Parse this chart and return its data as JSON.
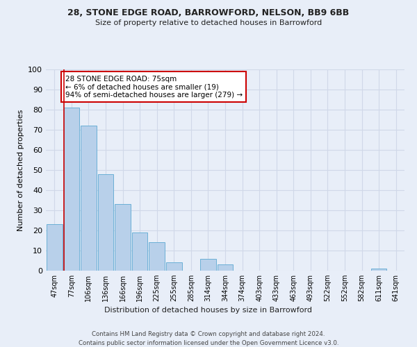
{
  "title1": "28, STONE EDGE ROAD, BARROWFORD, NELSON, BB9 6BB",
  "title2": "Size of property relative to detached houses in Barrowford",
  "xlabel": "Distribution of detached houses by size in Barrowford",
  "ylabel": "Number of detached properties",
  "categories": [
    "47sqm",
    "77sqm",
    "106sqm",
    "136sqm",
    "166sqm",
    "196sqm",
    "225sqm",
    "255sqm",
    "285sqm",
    "314sqm",
    "344sqm",
    "374sqm",
    "403sqm",
    "433sqm",
    "463sqm",
    "493sqm",
    "522sqm",
    "552sqm",
    "582sqm",
    "611sqm",
    "641sqm"
  ],
  "values": [
    23,
    81,
    72,
    48,
    33,
    19,
    14,
    4,
    0,
    6,
    3,
    0,
    0,
    0,
    0,
    0,
    0,
    0,
    0,
    1,
    0
  ],
  "bar_color": "#b8d0ea",
  "bar_edge_color": "#6aafd6",
  "annotation_text": "28 STONE EDGE ROAD: 75sqm\n← 6% of detached houses are smaller (19)\n94% of semi-detached houses are larger (279) →",
  "annotation_box_color": "#ffffff",
  "annotation_box_edge": "#cc0000",
  "vline_color": "#cc0000",
  "footer1": "Contains HM Land Registry data © Crown copyright and database right 2024.",
  "footer2": "Contains public sector information licensed under the Open Government Licence v3.0.",
  "background_color": "#e8eef8",
  "grid_color": "#d0d8e8",
  "ylim": [
    0,
    100
  ]
}
